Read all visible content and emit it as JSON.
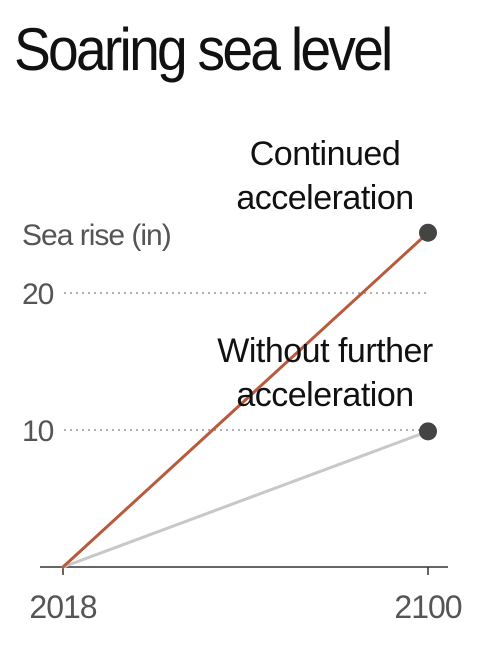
{
  "title": "Soaring sea level",
  "chart_data": {
    "type": "line",
    "title": "Soaring sea level",
    "ylabel": "Sea rise (in)",
    "xlabel": "",
    "x": [
      2018,
      2100
    ],
    "xticks": [
      "2018",
      "2100"
    ],
    "yticks": [
      10,
      20
    ],
    "ylim": [
      0,
      25
    ],
    "grid": "dotted horizontal at ticks",
    "series": [
      {
        "name": "Continued acceleration",
        "label_lines": [
          "Continued",
          "acceleration"
        ],
        "x": [
          2018,
          2100
        ],
        "values": [
          0,
          24.4
        ],
        "color": "#b85a3c"
      },
      {
        "name": "Without further acceleration",
        "label_lines": [
          "Without further",
          "acceleration"
        ],
        "x": [
          2018,
          2100
        ],
        "values": [
          0,
          9.9
        ],
        "color": "#c8c8c8"
      }
    ],
    "marker_color": "#444444",
    "axis_color": "#333333",
    "tick_text_color": "#555555"
  }
}
